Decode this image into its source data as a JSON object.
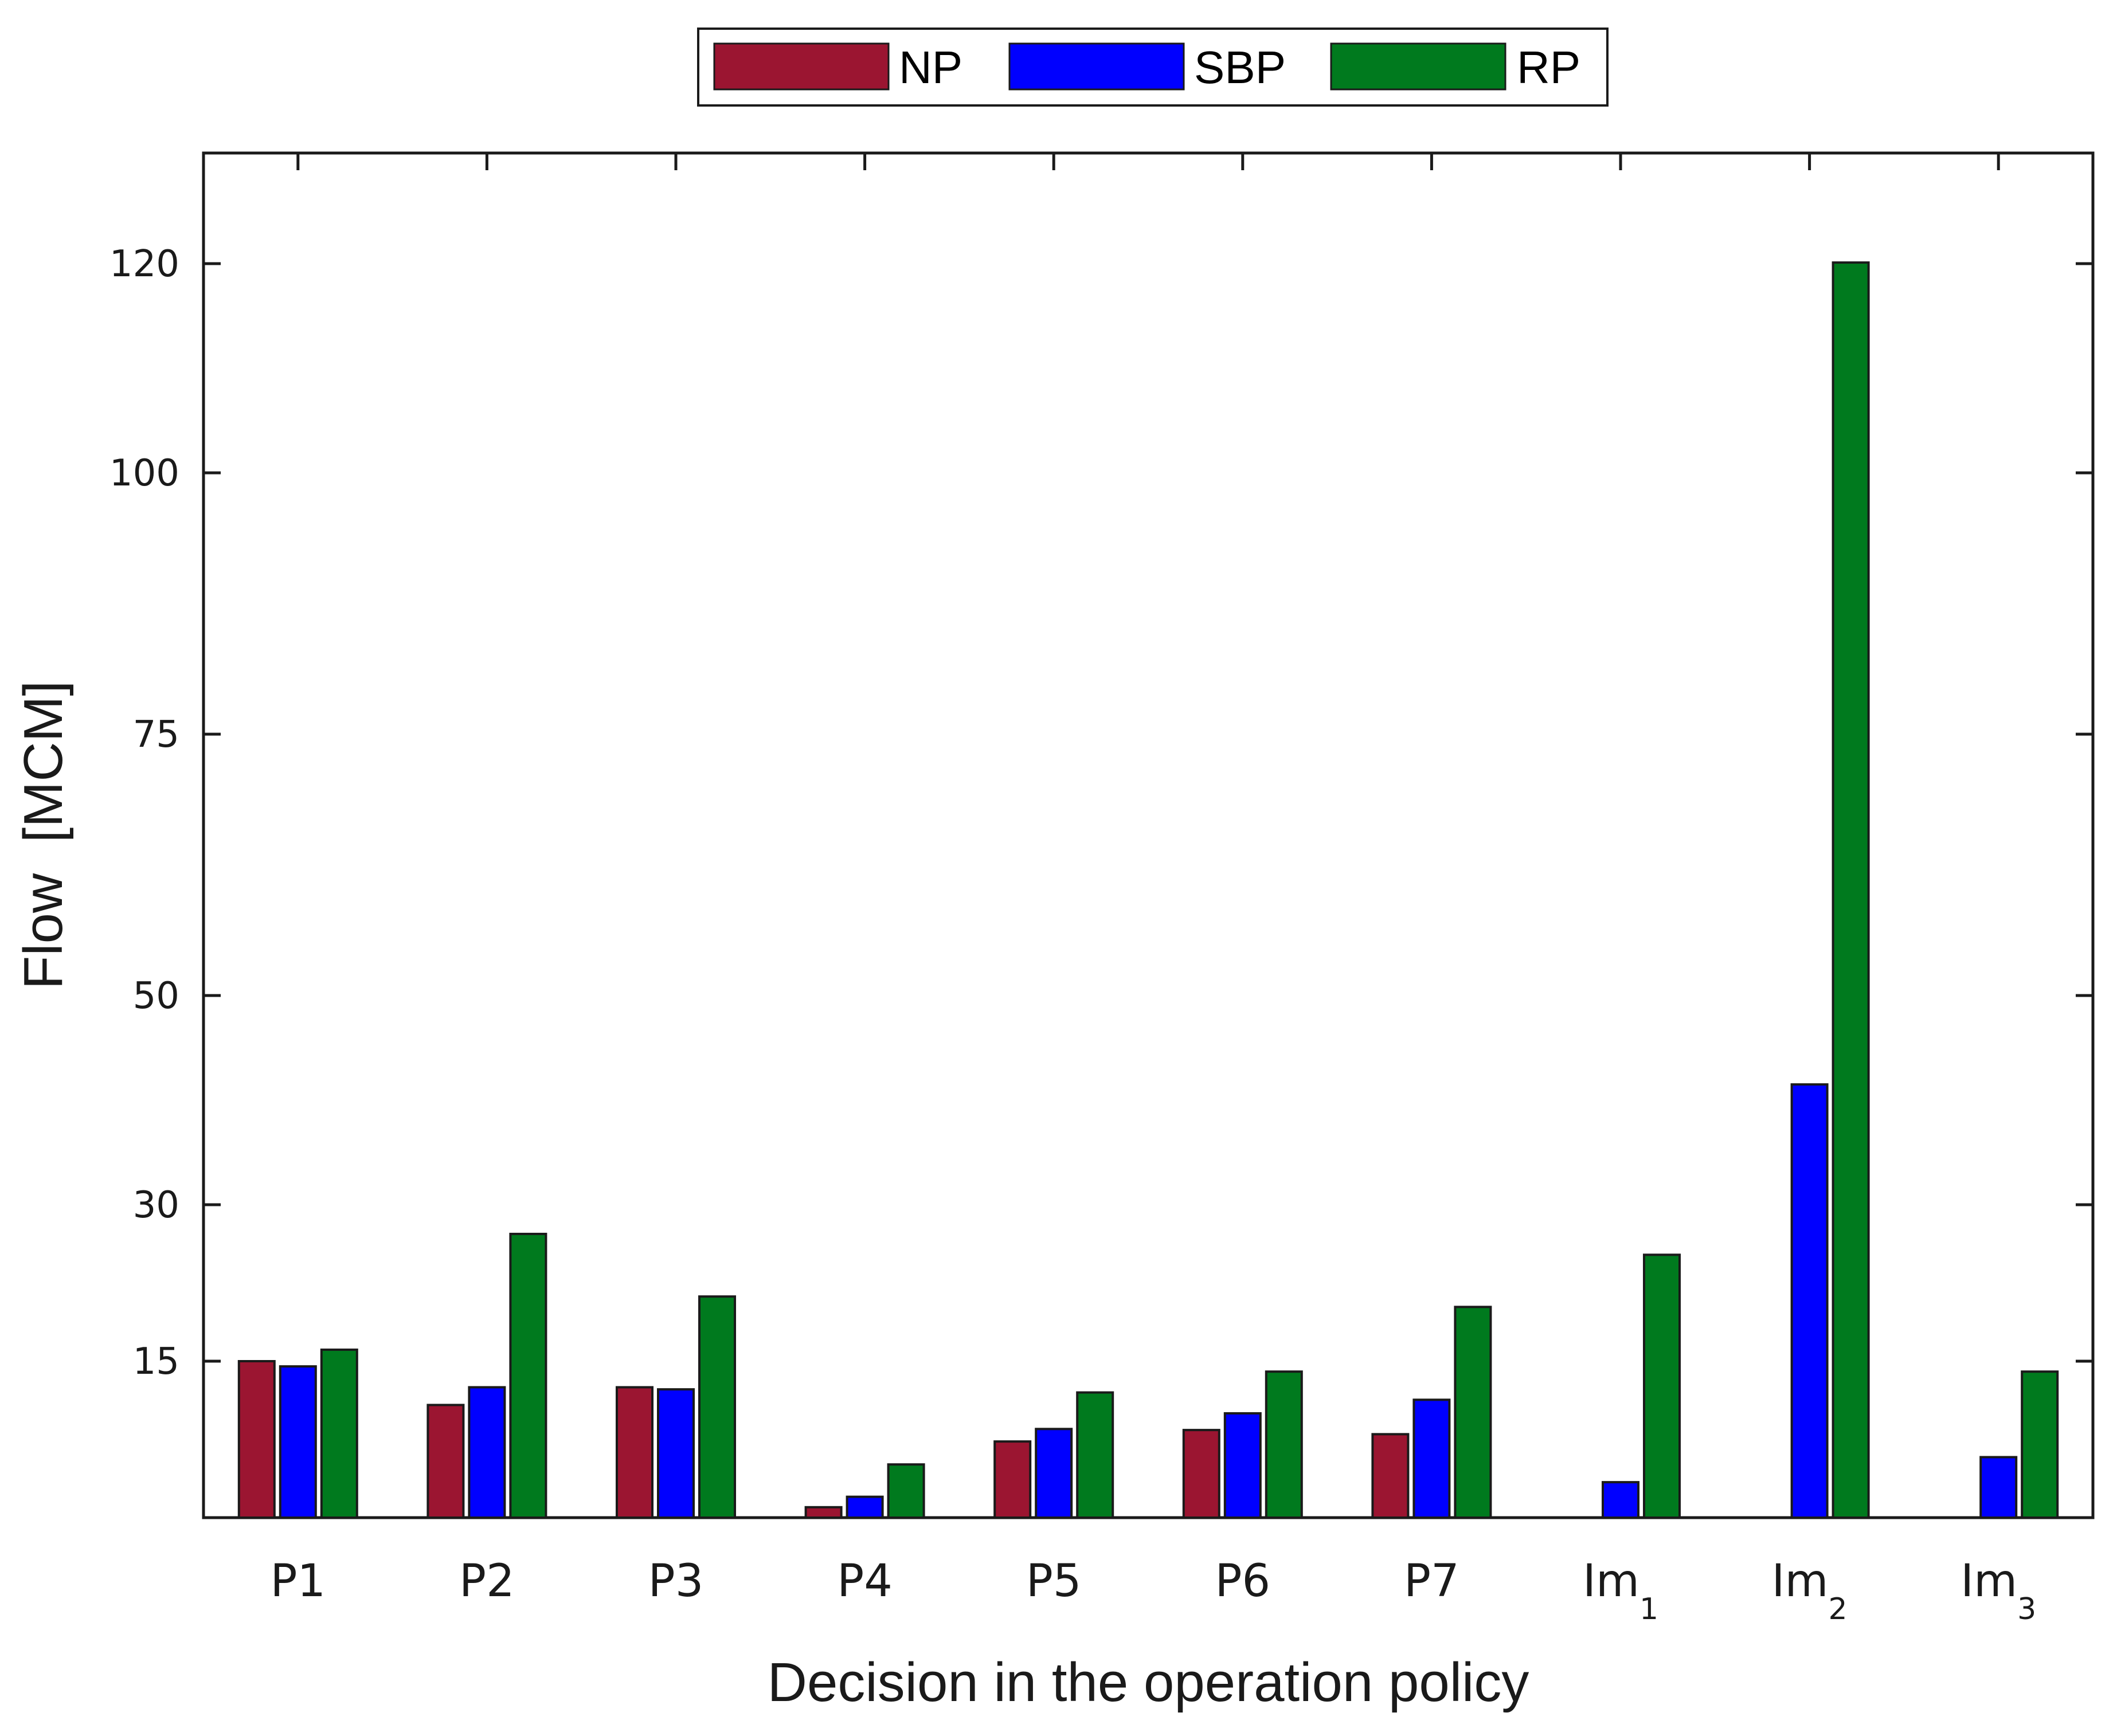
{
  "chart_data": {
    "type": "bar",
    "categories": [
      {
        "main": "P",
        "suffix": "1",
        "sub": false
      },
      {
        "main": "P",
        "suffix": "2",
        "sub": false
      },
      {
        "main": "P",
        "suffix": "3",
        "sub": false
      },
      {
        "main": "P",
        "suffix": "4",
        "sub": false
      },
      {
        "main": "P",
        "suffix": "5",
        "sub": false
      },
      {
        "main": "P",
        "suffix": "6",
        "sub": false
      },
      {
        "main": "P",
        "suffix": "7",
        "sub": false
      },
      {
        "main": "Im",
        "suffix": "1",
        "sub": true
      },
      {
        "main": "Im",
        "suffix": "2",
        "sub": true
      },
      {
        "main": "Im",
        "suffix": "3",
        "sub": true
      }
    ],
    "series": [
      {
        "name": "NP",
        "color": "#9b1531",
        "values": [
          15,
          10.8,
          12.5,
          1.0,
          7.3,
          8.4,
          8.0,
          0,
          0,
          0
        ]
      },
      {
        "name": "SBP",
        "color": "#0000ff",
        "values": [
          14.5,
          12.5,
          12.3,
          2.0,
          8.5,
          10.0,
          11.3,
          3.4,
          41.5,
          5.8
        ]
      },
      {
        "name": "RP",
        "color": "#007a1e",
        "values": [
          16.1,
          27.2,
          21.2,
          5.1,
          12.0,
          14.0,
          20.2,
          25.2,
          120.1,
          14.0
        ]
      }
    ],
    "yticks": [
      15,
      30,
      50,
      75,
      100,
      120
    ],
    "ylim": [
      0,
      130
    ],
    "title": "",
    "xlabel": "Decision in the operation policy",
    "ylabel": "Flow  [MCM]",
    "legend_position": "top-center",
    "grid": false
  }
}
